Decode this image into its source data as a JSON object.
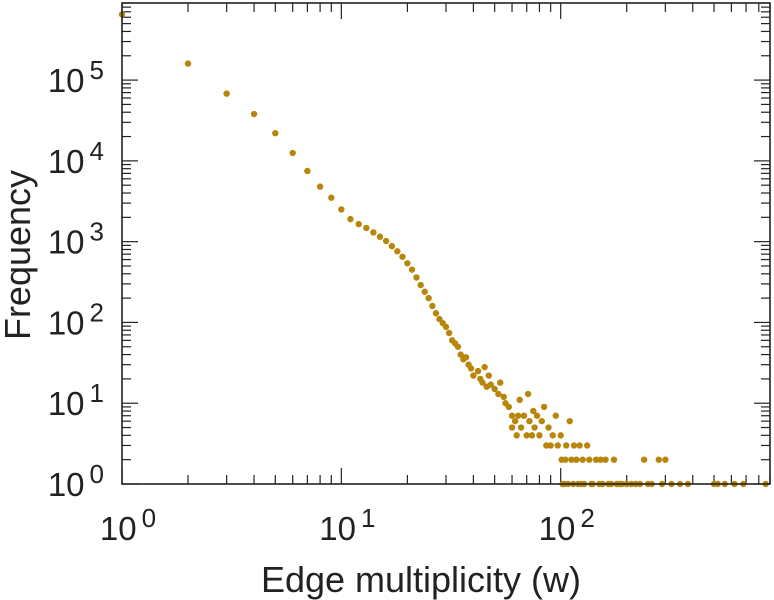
{
  "chart_data": {
    "type": "scatter",
    "title": "",
    "xlabel": "Edge multiplicity (w)",
    "ylabel": "Frequency",
    "x_scale": "log",
    "y_scale": "log",
    "xlim": [
      1,
      900
    ],
    "ylim": [
      1,
      900000
    ],
    "grid": false,
    "legend": "none",
    "marker_color": "#B8860B",
    "axis_color": "#222222",
    "x_ticks": [
      {
        "value": 1,
        "base": "10",
        "exp": "0"
      },
      {
        "value": 10,
        "base": "10",
        "exp": "1"
      },
      {
        "value": 100,
        "base": "10",
        "exp": "2"
      }
    ],
    "y_ticks": [
      {
        "value": 1,
        "base": "10",
        "exp": "0"
      },
      {
        "value": 10,
        "base": "10",
        "exp": "1"
      },
      {
        "value": 100,
        "base": "10",
        "exp": "2"
      },
      {
        "value": 1000,
        "base": "10",
        "exp": "3"
      },
      {
        "value": 10000,
        "base": "10",
        "exp": "4"
      },
      {
        "value": 100000,
        "base": "10",
        "exp": "5"
      }
    ],
    "points": [
      [
        1,
        650000
      ],
      [
        2,
        160000
      ],
      [
        3,
        68000
      ],
      [
        4,
        38000
      ],
      [
        5,
        22000
      ],
      [
        6,
        12500
      ],
      [
        7,
        7500
      ],
      [
        8,
        4800
      ],
      [
        9,
        3500
      ],
      [
        10,
        2500
      ],
      [
        11,
        1900
      ],
      [
        12,
        1650
      ],
      [
        13,
        1480
      ],
      [
        14,
        1300
      ],
      [
        15,
        1150
      ],
      [
        16,
        1020
      ],
      [
        17,
        880
      ],
      [
        18,
        760
      ],
      [
        19,
        650
      ],
      [
        20,
        540
      ],
      [
        21,
        450
      ],
      [
        22,
        360
      ],
      [
        23,
        290
      ],
      [
        24,
        240
      ],
      [
        25,
        200
      ],
      [
        26,
        160
      ],
      [
        27,
        130
      ],
      [
        28,
        110
      ],
      [
        29,
        98
      ],
      [
        30,
        88
      ],
      [
        31,
        74
      ],
      [
        32,
        60
      ],
      [
        33,
        55
      ],
      [
        34,
        50
      ],
      [
        35,
        40
      ],
      [
        36,
        35
      ],
      [
        37,
        37
      ],
      [
        38,
        30
      ],
      [
        39,
        27
      ],
      [
        40,
        22
      ],
      [
        42,
        25
      ],
      [
        43,
        20
      ],
      [
        44,
        18
      ],
      [
        45,
        28
      ],
      [
        46,
        16
      ],
      [
        47,
        22
      ],
      [
        48,
        17
      ],
      [
        50,
        15
      ],
      [
        52,
        13
      ],
      [
        53,
        18
      ],
      [
        55,
        12
      ],
      [
        56,
        10
      ],
      [
        58,
        9
      ],
      [
        60,
        7
      ],
      [
        60,
        5
      ],
      [
        62,
        6
      ],
      [
        63,
        4
      ],
      [
        64,
        7
      ],
      [
        65,
        11
      ],
      [
        66,
        5
      ],
      [
        68,
        7
      ],
      [
        70,
        4
      ],
      [
        71,
        13
      ],
      [
        72,
        6
      ],
      [
        74,
        4
      ],
      [
        75,
        8
      ],
      [
        76,
        5
      ],
      [
        78,
        7
      ],
      [
        80,
        4
      ],
      [
        82,
        6
      ],
      [
        84,
        9
      ],
      [
        86,
        3
      ],
      [
        88,
        5
      ],
      [
        90,
        3
      ],
      [
        92,
        4
      ],
      [
        95,
        7
      ],
      [
        97,
        3
      ],
      [
        100,
        4
      ],
      [
        101,
        2
      ],
      [
        102,
        1
      ],
      [
        104,
        1
      ],
      [
        105,
        2
      ],
      [
        106,
        3
      ],
      [
        108,
        1
      ],
      [
        110,
        6
      ],
      [
        112,
        2
      ],
      [
        114,
        1
      ],
      [
        115,
        3
      ],
      [
        118,
        2
      ],
      [
        120,
        1
      ],
      [
        122,
        3
      ],
      [
        124,
        1
      ],
      [
        126,
        2
      ],
      [
        128,
        1
      ],
      [
        132,
        3
      ],
      [
        135,
        2
      ],
      [
        138,
        1
      ],
      [
        140,
        1
      ],
      [
        145,
        2
      ],
      [
        150,
        1
      ],
      [
        152,
        2
      ],
      [
        155,
        1
      ],
      [
        160,
        2
      ],
      [
        165,
        1
      ],
      [
        170,
        1
      ],
      [
        175,
        2
      ],
      [
        180,
        1
      ],
      [
        185,
        1
      ],
      [
        190,
        1
      ],
      [
        200,
        1
      ],
      [
        210,
        1
      ],
      [
        220,
        1
      ],
      [
        230,
        1
      ],
      [
        240,
        2
      ],
      [
        250,
        1
      ],
      [
        260,
        1
      ],
      [
        280,
        2
      ],
      [
        290,
        1
      ],
      [
        300,
        2
      ],
      [
        320,
        1
      ],
      [
        350,
        1
      ],
      [
        380,
        1
      ],
      [
        500,
        1
      ],
      [
        520,
        1
      ],
      [
        560,
        1
      ],
      [
        620,
        1
      ],
      [
        680,
        1
      ],
      [
        860,
        1
      ]
    ]
  }
}
